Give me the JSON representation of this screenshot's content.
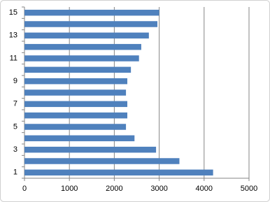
{
  "chart_data": {
    "type": "barh",
    "categories": [
      "1",
      null,
      "3",
      null,
      "5",
      null,
      "7",
      null,
      "9",
      null,
      "11",
      null,
      "13",
      null,
      "15"
    ],
    "values": [
      4200,
      3450,
      2930,
      2450,
      2260,
      2290,
      2290,
      2260,
      2290,
      2370,
      2550,
      2600,
      2770,
      2960,
      3000
    ],
    "color": "#4f81bd",
    "xlim": [
      0,
      5000
    ],
    "xticks": [
      0,
      1000,
      2000,
      3000,
      4000,
      5000
    ],
    "grid": true
  }
}
